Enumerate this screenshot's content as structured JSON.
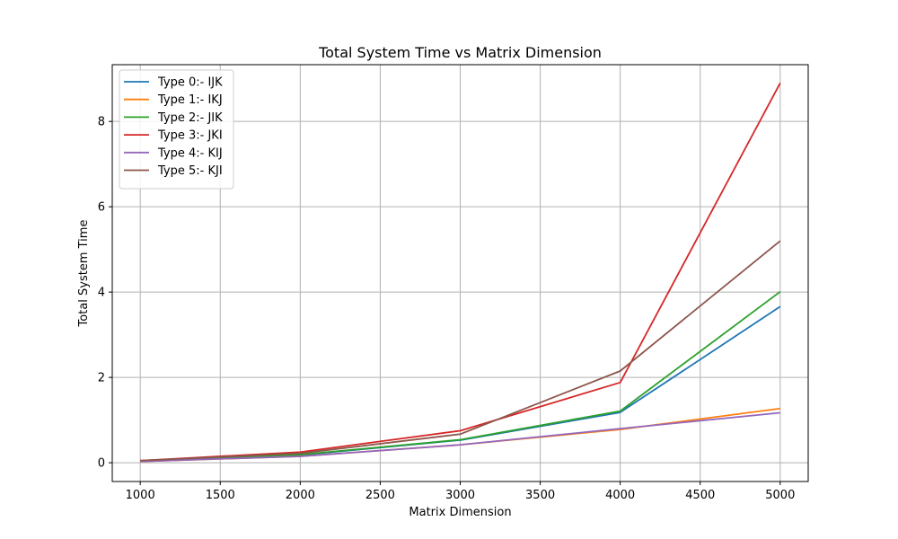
{
  "chart_data": {
    "type": "line",
    "title": "Total System Time vs Matrix Dimension",
    "xlabel": "Matrix Dimension",
    "ylabel": "Total System Time",
    "x": [
      1000,
      2000,
      3000,
      4000,
      5000
    ],
    "xlim": [
      825,
      5175
    ],
    "ylim": [
      -0.44,
      9.33
    ],
    "xticks": [
      1000,
      1500,
      2000,
      2500,
      3000,
      3500,
      4000,
      4500,
      5000
    ],
    "yticks": [
      0,
      2,
      4,
      6,
      8
    ],
    "grid": true,
    "legend_position": "top-left",
    "series": [
      {
        "name": "Type 0:- IJK",
        "color": "#1f77b4",
        "values": [
          0.04,
          0.18,
          0.53,
          1.18,
          3.66
        ]
      },
      {
        "name": "Type 1:- IKJ",
        "color": "#ff7f0e",
        "values": [
          0.03,
          0.15,
          0.42,
          0.78,
          1.27
        ]
      },
      {
        "name": "Type 2:- JIK",
        "color": "#2ca02c",
        "values": [
          0.04,
          0.19,
          0.54,
          1.21,
          4.01
        ]
      },
      {
        "name": "Type 3:- JKI",
        "color": "#d62728",
        "values": [
          0.05,
          0.25,
          0.75,
          1.88,
          8.9
        ]
      },
      {
        "name": "Type 4:- KIJ",
        "color": "#9467bd",
        "values": [
          0.03,
          0.15,
          0.42,
          0.8,
          1.17
        ]
      },
      {
        "name": "Type 5:- KJI",
        "color": "#8c564b",
        "values": [
          0.05,
          0.22,
          0.67,
          2.15,
          5.2
        ]
      }
    ]
  }
}
